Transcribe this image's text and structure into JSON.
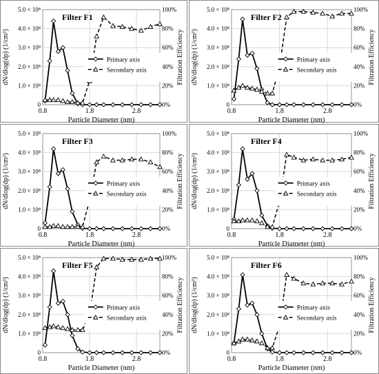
{
  "chart_data": [
    {
      "type": "line",
      "title": "Filter F1",
      "xlabel": "Particle Diameter (nm)",
      "ylabel": "dN/dlog(dp) (1/cm³)",
      "y2label": "Filtration Efficiency",
      "xlim": [
        0.8,
        3.3
      ],
      "ylim": [
        0,
        500000000.0
      ],
      "y2lim": [
        0,
        100
      ],
      "xticks": [
        "0.8",
        "1.8",
        "2.8"
      ],
      "yticks": [
        "0",
        "1.0 × 10⁸",
        "2.0 × 10⁸",
        "3.0 × 10⁸",
        "4.0 × 10⁸",
        "5.0 × 10⁸"
      ],
      "y2ticks": [
        "0%",
        "20%",
        "40%",
        "60%",
        "80%",
        "100%"
      ],
      "legend": [
        "Primary axis",
        "Secondary axis"
      ],
      "legend_position": "center-right",
      "series": [
        {
          "name": "Primary axis",
          "axis": "left",
          "style": "solid-diamond",
          "x": [
            0.85,
            0.95,
            1.03,
            1.13,
            1.23,
            1.33,
            1.43,
            1.55,
            1.65,
            1.8,
            1.95,
            2.1,
            2.3,
            2.5,
            2.7,
            2.9,
            3.1,
            3.3
          ],
          "y": [
            20000000.0,
            230000000.0,
            440000000.0,
            280000000.0,
            300000000.0,
            180000000.0,
            60000000.0,
            5000000.0,
            0,
            0,
            0,
            0,
            0,
            0,
            0,
            0,
            0,
            0
          ]
        },
        {
          "name": "Secondary axis",
          "axis": "right",
          "style": "dashed-triangle",
          "x": [
            0.85,
            0.95,
            1.03,
            1.13,
            1.23,
            1.33,
            1.43,
            1.55,
            1.65,
            1.8,
            1.95,
            2.1,
            2.3,
            2.5,
            2.7,
            2.9,
            3.1,
            3.3
          ],
          "y": [
            5,
            5,
            5,
            5,
            4,
            3,
            3,
            2,
            2,
            25,
            72,
            92,
            83,
            82,
            80,
            78,
            82,
            85
          ]
        }
      ]
    },
    {
      "type": "line",
      "title": "Filter F2",
      "xlabel": "Particle Diameter (nm)",
      "ylabel": "dN/dlog(dp) (1/cm³)",
      "y2label": "Filtration Efficiency",
      "xlim": [
        0.8,
        3.3
      ],
      "ylim": [
        0,
        500000000.0
      ],
      "y2lim": [
        0,
        100
      ],
      "xticks": [
        "0.8",
        "1.8",
        "2.8"
      ],
      "yticks": [
        "0",
        "1.0 × 10⁸",
        "2.0 × 10⁸",
        "3.0 × 10⁸",
        "4.0 × 10⁸",
        "5.0 × 10⁸"
      ],
      "y2ticks": [
        "0%",
        "20%",
        "40%",
        "60%",
        "80%",
        "100%"
      ],
      "legend": [
        "Primary axis",
        "Secondary axis"
      ],
      "legend_position": "center-right",
      "series": [
        {
          "name": "Primary axis",
          "axis": "left",
          "style": "solid-diamond",
          "x": [
            0.85,
            0.95,
            1.03,
            1.13,
            1.23,
            1.33,
            1.43,
            1.55,
            1.65,
            1.8,
            1.95,
            2.1,
            2.3,
            2.5,
            2.7,
            2.9,
            3.1,
            3.3
          ],
          "y": [
            30000000.0,
            240000000.0,
            450000000.0,
            260000000.0,
            270000000.0,
            190000000.0,
            80000000.0,
            10000000.0,
            0,
            0,
            0,
            0,
            0,
            0,
            0,
            0,
            0,
            0
          ]
        },
        {
          "name": "Secondary axis",
          "axis": "right",
          "style": "dashed-triangle",
          "x": [
            0.85,
            0.95,
            1.03,
            1.13,
            1.23,
            1.33,
            1.43,
            1.55,
            1.65,
            1.8,
            1.95,
            2.1,
            2.3,
            2.5,
            2.7,
            2.9,
            3.1,
            3.3
          ],
          "y": [
            15,
            18,
            20,
            18,
            17,
            16,
            14,
            12,
            12,
            40,
            92,
            98,
            98,
            97,
            96,
            93,
            96,
            96
          ]
        }
      ]
    },
    {
      "type": "line",
      "title": "Filter F3",
      "xlabel": "Particle Diameter (nm)",
      "ylabel": "dN/dlog(dp) (1/cm³)",
      "y2label": "Filtration Efficiency",
      "xlim": [
        0.8,
        3.3
      ],
      "ylim": [
        0,
        500000000.0
      ],
      "y2lim": [
        0,
        100
      ],
      "xticks": [
        "0.8",
        "1.8",
        "2.8"
      ],
      "yticks": [
        "0",
        "1.0 × 10⁸",
        "2.0 × 10⁸",
        "3.0 × 10⁸",
        "4.0 × 10⁸",
        "5.0 × 10⁸"
      ],
      "y2ticks": [
        "0%",
        "20%",
        "40%",
        "60%",
        "80%",
        "100%"
      ],
      "legend": [
        "Primary axis",
        "Secondary axis"
      ],
      "legend_position": "center-right",
      "series": [
        {
          "name": "Primary axis",
          "axis": "left",
          "style": "solid-diamond",
          "x": [
            0.85,
            0.95,
            1.03,
            1.13,
            1.23,
            1.33,
            1.43,
            1.55,
            1.65,
            1.8,
            1.95,
            2.1,
            2.3,
            2.5,
            2.7,
            2.9,
            3.1,
            3.3
          ],
          "y": [
            30000000.0,
            220000000.0,
            420000000.0,
            290000000.0,
            310000000.0,
            210000000.0,
            90000000.0,
            20000000.0,
            2000000.0,
            0,
            0,
            0,
            0,
            0,
            0,
            0,
            0,
            0
          ]
        },
        {
          "name": "Secondary axis",
          "axis": "right",
          "style": "dashed-triangle",
          "x": [
            0.85,
            0.95,
            1.03,
            1.13,
            1.23,
            1.33,
            1.43,
            1.55,
            1.65,
            1.8,
            1.95,
            2.1,
            2.3,
            2.5,
            2.7,
            2.9,
            3.1,
            3.3
          ],
          "y": [
            2,
            2,
            3,
            3,
            2,
            2,
            2,
            2,
            2,
            30,
            70,
            76,
            72,
            72,
            73,
            73,
            70,
            65
          ]
        }
      ]
    },
    {
      "type": "line",
      "title": "Filter F4",
      "xlabel": "Particle Diameter (nm)",
      "ylabel": "dN/dlog(dp) (1/cm³)",
      "y2label": "Filtration Efficiency",
      "xlim": [
        0.8,
        3.3
      ],
      "ylim": [
        0,
        500000000.0
      ],
      "y2lim": [
        0,
        100
      ],
      "xticks": [
        "0.8",
        "1.8",
        "2.8"
      ],
      "yticks": [
        "0",
        "1.0 × 10⁸",
        "2.0 × 10⁸",
        "3.0 × 10⁸",
        "4.0 × 10⁸",
        "5.0 × 10⁸"
      ],
      "y2ticks": [
        "0%",
        "20%",
        "40%",
        "60%",
        "80%",
        "100%"
      ],
      "legend": [
        "Primary axis",
        "Secondary axis"
      ],
      "legend_position": "center-right",
      "series": [
        {
          "name": "Primary axis",
          "axis": "left",
          "style": "solid-diamond",
          "x": [
            0.85,
            0.95,
            1.03,
            1.13,
            1.23,
            1.33,
            1.43,
            1.55,
            1.65,
            1.8,
            1.95,
            2.1,
            2.3,
            2.5,
            2.7,
            2.9,
            3.1,
            3.3
          ],
          "y": [
            50000000.0,
            230000000.0,
            420000000.0,
            260000000.0,
            290000000.0,
            200000000.0,
            70000000.0,
            15000000.0,
            2000000.0,
            0,
            0,
            0,
            0,
            0,
            0,
            0,
            0,
            0
          ]
        },
        {
          "name": "Secondary axis",
          "axis": "right",
          "style": "dashed-triangle",
          "x": [
            0.85,
            0.95,
            1.03,
            1.13,
            1.23,
            1.33,
            1.43,
            1.55,
            1.65,
            1.8,
            1.95,
            2.1,
            2.3,
            2.5,
            2.7,
            2.9,
            3.1,
            3.3
          ],
          "y": [
            8,
            8,
            9,
            9,
            9,
            8,
            6,
            2,
            2,
            28,
            78,
            75,
            72,
            73,
            72,
            72,
            73,
            75
          ]
        }
      ]
    },
    {
      "type": "line",
      "title": "Filter F5",
      "xlabel": "Particle Diameter (nm)",
      "ylabel": "dN/dlog(dp) (1/cm³)",
      "y2label": "Filtration Efficiency",
      "xlim": [
        0.8,
        3.3
      ],
      "ylim": [
        0,
        500000000.0
      ],
      "y2lim": [
        0,
        100
      ],
      "xticks": [
        "0.8",
        "1.8",
        "2.8"
      ],
      "yticks": [
        "0",
        "1.0 × 10⁸",
        "2.0 × 10⁸",
        "3.0 × 10⁸",
        "4.0 × 10⁸",
        "5.0 × 10⁸"
      ],
      "y2ticks": [
        "0%",
        "20%",
        "40%",
        "60%",
        "80%",
        "100%"
      ],
      "legend": [
        "Primary axis",
        "Secondary axis"
      ],
      "legend_position": "center-right",
      "series": [
        {
          "name": "Primary axis",
          "axis": "left",
          "style": "solid-diamond",
          "x": [
            0.85,
            0.95,
            1.03,
            1.13,
            1.23,
            1.33,
            1.43,
            1.55,
            1.65,
            1.8,
            1.95,
            2.1,
            2.3,
            2.5,
            2.7,
            2.9,
            3.1,
            3.3
          ],
          "y": [
            40000000.0,
            240000000.0,
            430000000.0,
            260000000.0,
            270000000.0,
            200000000.0,
            90000000.0,
            20000000.0,
            3000000.0,
            0,
            0,
            0,
            0,
            0,
            0,
            0,
            0,
            0
          ]
        },
        {
          "name": "Secondary axis",
          "axis": "right",
          "style": "dashed-triangle",
          "x": [
            0.85,
            0.95,
            1.03,
            1.13,
            1.23,
            1.33,
            1.43,
            1.55,
            1.65,
            1.8,
            1.95,
            2.1,
            2.3,
            2.5,
            2.7,
            2.9,
            3.1,
            3.3
          ],
          "y": [
            26,
            27,
            28,
            27,
            26,
            25,
            24,
            24,
            24,
            40,
            90,
            99,
            99,
            98,
            98,
            98,
            99,
            99
          ]
        }
      ]
    },
    {
      "type": "line",
      "title": "Filter F6",
      "xlabel": "Particle Diameter (nm)",
      "ylabel": "dN/dlog(dp) (1/cm³)",
      "y2label": "Filtration Efficiency",
      "xlim": [
        0.8,
        3.3
      ],
      "ylim": [
        0,
        500000000.0
      ],
      "y2lim": [
        0,
        100
      ],
      "xticks": [
        "0.8",
        "1.8",
        "2.8"
      ],
      "yticks": [
        "0",
        "1.0 × 10⁸",
        "2.0 × 10⁸",
        "3.0 × 10⁸",
        "4.0 × 10⁸",
        "5.0 × 10⁸"
      ],
      "y2ticks": [
        "0%",
        "20%",
        "40%",
        "60%",
        "80%",
        "100%"
      ],
      "legend": [
        "Primary axis",
        "Secondary axis"
      ],
      "legend_position": "center-right",
      "series": [
        {
          "name": "Primary axis",
          "axis": "left",
          "style": "solid-diamond",
          "x": [
            0.85,
            0.95,
            1.03,
            1.13,
            1.23,
            1.33,
            1.43,
            1.55,
            1.65,
            1.8,
            1.95,
            2.1,
            2.3,
            2.5,
            2.7,
            2.9,
            3.1,
            3.3
          ],
          "y": [
            50000000.0,
            230000000.0,
            410000000.0,
            250000000.0,
            260000000.0,
            200000000.0,
            100000000.0,
            20000000.0,
            3000000.0,
            0,
            0,
            0,
            0,
            0,
            0,
            0,
            0,
            0
          ]
        },
        {
          "name": "Secondary axis",
          "axis": "right",
          "style": "dashed-triangle",
          "x": [
            0.85,
            0.95,
            1.03,
            1.13,
            1.23,
            1.33,
            1.43,
            1.55,
            1.65,
            1.8,
            1.95,
            2.1,
            2.3,
            2.5,
            2.7,
            2.9,
            3.1,
            3.3
          ],
          "y": [
            10,
            12,
            14,
            14,
            13,
            12,
            10,
            5,
            5,
            28,
            82,
            78,
            73,
            72,
            73,
            73,
            72,
            75
          ]
        }
      ]
    }
  ]
}
